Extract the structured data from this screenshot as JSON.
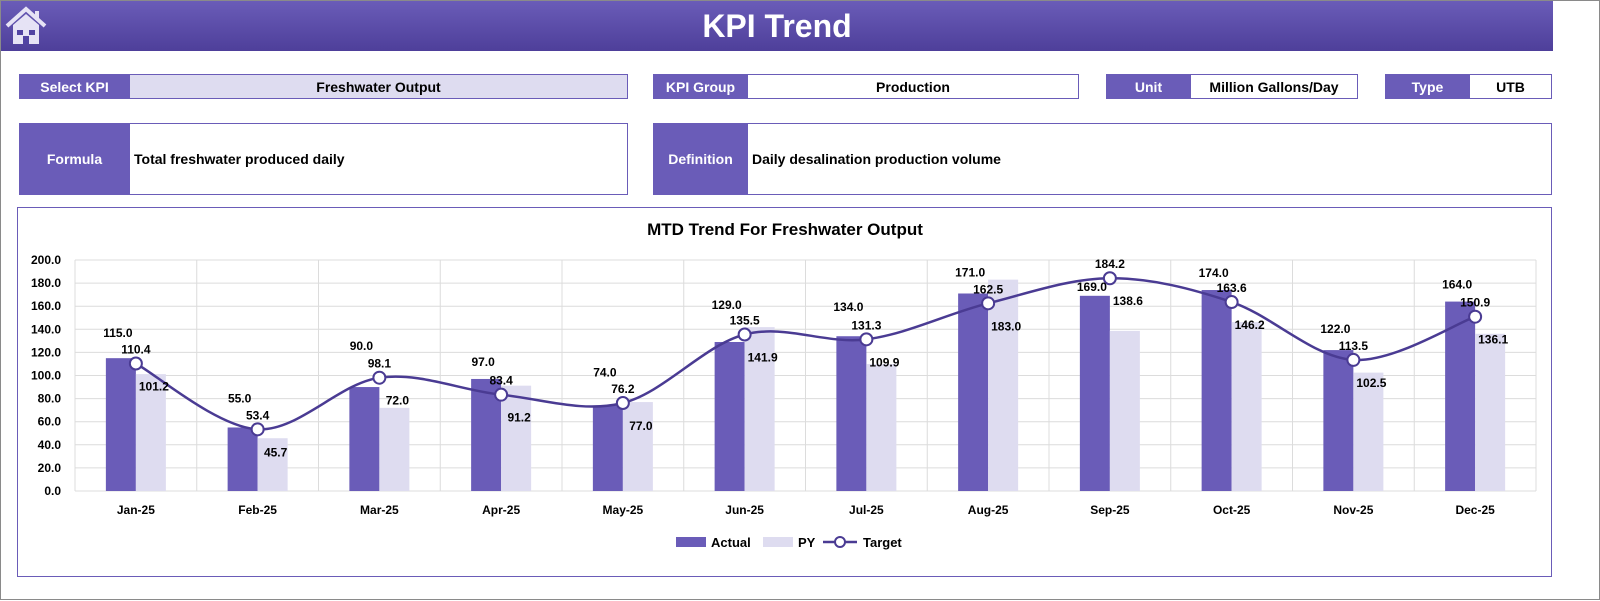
{
  "header": {
    "title": "KPI Trend",
    "home_icon": "home-icon"
  },
  "fields": {
    "select_kpi_label": "Select KPI",
    "select_kpi_value": "Freshwater Output",
    "kpi_group_label": "KPI Group",
    "kpi_group_value": "Production",
    "unit_label": "Unit",
    "unit_value": "Million Gallons/Day",
    "type_label": "Type",
    "type_value": "UTB",
    "formula_label": "Formula",
    "formula_value": "Total freshwater produced daily",
    "definition_label": "Definition",
    "definition_value": "Daily desalination production volume"
  },
  "colors": {
    "accent": "#6a5cb8",
    "light": "#dedcf0",
    "line": "#4a3b93"
  },
  "chart_data": {
    "type": "bar",
    "title": "MTD Trend For Freshwater Output",
    "categories": [
      "Jan-25",
      "Feb-25",
      "Mar-25",
      "Apr-25",
      "May-25",
      "Jun-25",
      "Jul-25",
      "Aug-25",
      "Sep-25",
      "Oct-25",
      "Nov-25",
      "Dec-25"
    ],
    "series": [
      {
        "name": "Actual",
        "type": "bar",
        "values": [
          115.0,
          55.0,
          90.0,
          97.0,
          74.0,
          129.0,
          134.0,
          171.0,
          169.0,
          174.0,
          122.0,
          164.0
        ]
      },
      {
        "name": "PY",
        "type": "bar",
        "values": [
          101.2,
          45.7,
          72.0,
          91.2,
          77.0,
          141.9,
          109.9,
          183.0,
          138.6,
          146.2,
          102.5,
          136.1
        ]
      },
      {
        "name": "Target",
        "type": "line",
        "values": [
          110.4,
          53.4,
          98.1,
          83.4,
          76.2,
          135.5,
          131.3,
          162.5,
          184.2,
          163.6,
          113.5,
          150.9
        ]
      }
    ],
    "yticks": [
      "0.0",
      "20.0",
      "40.0",
      "60.0",
      "80.0",
      "100.0",
      "120.0",
      "140.0",
      "160.0",
      "180.0",
      "200.0"
    ],
    "ylim": [
      0,
      200
    ],
    "grid": true,
    "legend": "bottom"
  }
}
